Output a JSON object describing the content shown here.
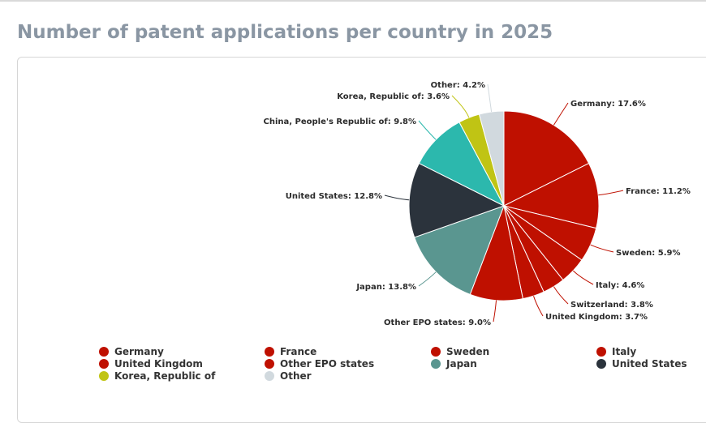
{
  "page": {
    "title": "Number of patent applications per country in 2025"
  },
  "chart_data": {
    "type": "pie",
    "title": "Number of patent applications per country in 2025",
    "unit": "%",
    "slices": [
      {
        "name": "Germany",
        "value": 17.6,
        "color": "#bf1000"
      },
      {
        "name": "France",
        "value": 11.2,
        "color": "#bf1000"
      },
      {
        "name": "Sweden",
        "value": 5.9,
        "color": "#bf1000"
      },
      {
        "name": "Italy",
        "value": 4.6,
        "color": "#bf1000"
      },
      {
        "name": "Switzerland",
        "value": 3.8,
        "color": "#bf1000"
      },
      {
        "name": "United Kingdom",
        "value": 3.7,
        "color": "#bf1000"
      },
      {
        "name": "Other EPO states",
        "value": 9.0,
        "color": "#bf1000"
      },
      {
        "name": "Japan",
        "value": 13.8,
        "color": "#5a9690"
      },
      {
        "name": "United States",
        "value": 12.8,
        "color": "#2b333c"
      },
      {
        "name": "China, People's Republic of",
        "value": 9.8,
        "color": "#2cb8ad"
      },
      {
        "name": "Korea, Republic of",
        "value": 3.6,
        "color": "#c0c414"
      },
      {
        "name": "Other",
        "value": 4.2,
        "color": "#d1d9de"
      }
    ],
    "legend": [
      {
        "name": "Germany",
        "color": "#bf1000"
      },
      {
        "name": "France",
        "color": "#bf1000"
      },
      {
        "name": "Sweden",
        "color": "#bf1000"
      },
      {
        "name": "Italy",
        "color": "#bf1000"
      },
      {
        "name": "United Kingdom",
        "color": "#bf1000"
      },
      {
        "name": "Other EPO states",
        "color": "#bf1000"
      },
      {
        "name": "Japan",
        "color": "#5a9690"
      },
      {
        "name": "United States",
        "color": "#2b333c"
      },
      {
        "name": "Korea, Republic of",
        "color": "#c0c414"
      },
      {
        "name": "Other",
        "color": "#d1d9de"
      }
    ]
  }
}
